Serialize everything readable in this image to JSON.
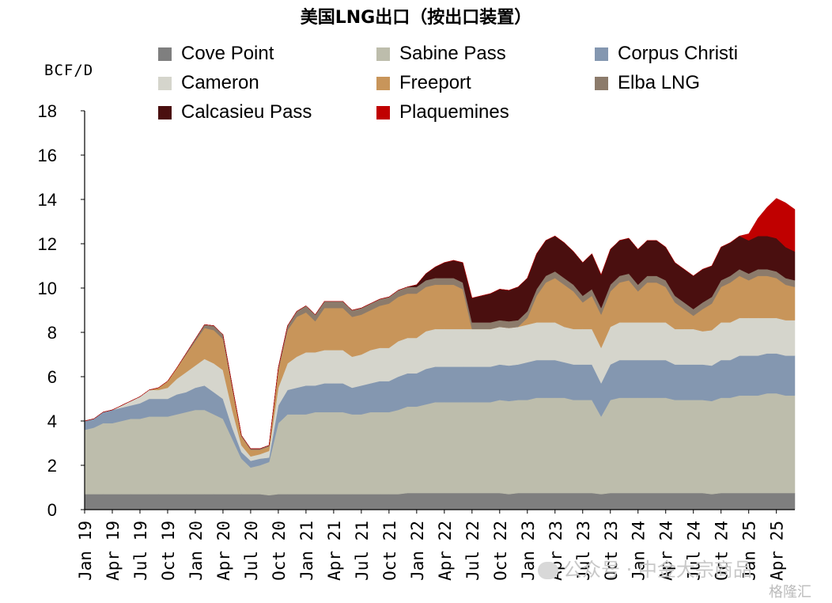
{
  "chart_data": {
    "type": "area",
    "stacked": true,
    "title": "美国LNG出口（按出口装置）",
    "ylabel": "BCF/D",
    "ylim": [
      0,
      18
    ],
    "yticks": [
      0,
      2,
      4,
      6,
      8,
      10,
      12,
      14,
      16,
      18
    ],
    "x_tick_labels": [
      "Jan 19",
      "Apr 19",
      "Jul 19",
      "Oct 19",
      "Jan 20",
      "Apr 20",
      "Jul 20",
      "Oct 20",
      "Jan 21",
      "Apr 21",
      "Jul 21",
      "Oct 21",
      "Jan 22",
      "Apr 22",
      "Jul 22",
      "Oct 22",
      "Jan 23",
      "Apr 23",
      "Jul 23",
      "Oct 23",
      "Jan 24",
      "Apr 24",
      "Jul 24",
      "Oct 24",
      "Jan 25",
      "Apr 25"
    ],
    "x_range": [
      "2019-01",
      "2025-06"
    ],
    "legend_position": "top",
    "x": [
      "2019-01",
      "2019-02",
      "2019-03",
      "2019-04",
      "2019-05",
      "2019-06",
      "2019-07",
      "2019-08",
      "2019-09",
      "2019-10",
      "2019-11",
      "2019-12",
      "2020-01",
      "2020-02",
      "2020-03",
      "2020-04",
      "2020-05",
      "2020-06",
      "2020-07",
      "2020-08",
      "2020-09",
      "2020-10",
      "2020-11",
      "2020-12",
      "2021-01",
      "2021-02",
      "2021-03",
      "2021-04",
      "2021-05",
      "2021-06",
      "2021-07",
      "2021-08",
      "2021-09",
      "2021-10",
      "2021-11",
      "2021-12",
      "2022-01",
      "2022-02",
      "2022-03",
      "2022-04",
      "2022-05",
      "2022-06",
      "2022-07",
      "2022-08",
      "2022-09",
      "2022-10",
      "2022-11",
      "2022-12",
      "2023-01",
      "2023-02",
      "2023-03",
      "2023-04",
      "2023-05",
      "2023-06",
      "2023-07",
      "2023-08",
      "2023-09",
      "2023-10",
      "2023-11",
      "2023-12",
      "2024-01",
      "2024-02",
      "2024-03",
      "2024-04",
      "2024-05",
      "2024-06",
      "2024-07",
      "2024-08",
      "2024-09",
      "2024-10",
      "2024-11",
      "2024-12",
      "2025-01",
      "2025-02",
      "2025-03",
      "2025-04",
      "2025-05",
      "2025-06"
    ],
    "series": [
      {
        "name": "Cove Point",
        "color": "#7f7f7f",
        "values": [
          0.7,
          0.7,
          0.7,
          0.7,
          0.7,
          0.7,
          0.7,
          0.7,
          0.7,
          0.7,
          0.7,
          0.7,
          0.7,
          0.7,
          0.7,
          0.7,
          0.7,
          0.7,
          0.7,
          0.7,
          0.65,
          0.7,
          0.7,
          0.7,
          0.7,
          0.7,
          0.7,
          0.7,
          0.7,
          0.7,
          0.7,
          0.7,
          0.7,
          0.7,
          0.7,
          0.75,
          0.75,
          0.75,
          0.75,
          0.75,
          0.75,
          0.75,
          0.75,
          0.75,
          0.75,
          0.75,
          0.7,
          0.75,
          0.75,
          0.75,
          0.75,
          0.75,
          0.75,
          0.75,
          0.75,
          0.75,
          0.7,
          0.75,
          0.75,
          0.75,
          0.75,
          0.75,
          0.75,
          0.75,
          0.75,
          0.75,
          0.75,
          0.75,
          0.7,
          0.75,
          0.75,
          0.75,
          0.75,
          0.75,
          0.75,
          0.75,
          0.75,
          0.75
        ]
      },
      {
        "name": "Sabine Pass",
        "color": "#bdbdac",
        "values": [
          2.9,
          3.0,
          3.2,
          3.2,
          3.3,
          3.4,
          3.4,
          3.5,
          3.5,
          3.5,
          3.6,
          3.7,
          3.8,
          3.8,
          3.6,
          3.4,
          2.5,
          1.6,
          1.2,
          1.3,
          1.5,
          3.2,
          3.6,
          3.6,
          3.6,
          3.7,
          3.7,
          3.7,
          3.7,
          3.6,
          3.6,
          3.7,
          3.7,
          3.7,
          3.8,
          3.9,
          3.9,
          4.0,
          4.1,
          4.1,
          4.1,
          4.1,
          4.1,
          4.1,
          4.1,
          4.2,
          4.2,
          4.2,
          4.2,
          4.3,
          4.3,
          4.3,
          4.3,
          4.2,
          4.2,
          4.2,
          3.5,
          4.2,
          4.3,
          4.3,
          4.3,
          4.3,
          4.3,
          4.3,
          4.2,
          4.2,
          4.2,
          4.2,
          4.2,
          4.3,
          4.3,
          4.4,
          4.4,
          4.4,
          4.5,
          4.5,
          4.4,
          4.4
        ]
      },
      {
        "name": "Corpus Christi",
        "color": "#8497b0",
        "values": [
          0.4,
          0.4,
          0.5,
          0.6,
          0.6,
          0.6,
          0.7,
          0.8,
          0.8,
          0.8,
          0.9,
          0.9,
          1.0,
          1.1,
          1.0,
          0.9,
          0.5,
          0.3,
          0.3,
          0.3,
          0.2,
          0.8,
          1.1,
          1.2,
          1.3,
          1.2,
          1.3,
          1.3,
          1.3,
          1.2,
          1.3,
          1.3,
          1.4,
          1.4,
          1.5,
          1.5,
          1.5,
          1.6,
          1.6,
          1.6,
          1.6,
          1.6,
          1.6,
          1.6,
          1.6,
          1.6,
          1.6,
          1.6,
          1.7,
          1.7,
          1.7,
          1.7,
          1.6,
          1.6,
          1.6,
          1.6,
          1.5,
          1.6,
          1.7,
          1.7,
          1.7,
          1.7,
          1.7,
          1.7,
          1.6,
          1.6,
          1.6,
          1.6,
          1.6,
          1.7,
          1.7,
          1.8,
          1.8,
          1.8,
          1.8,
          1.8,
          1.8,
          1.8
        ]
      },
      {
        "name": "Cameron",
        "color": "#d5d5cc",
        "values": [
          0.0,
          0.0,
          0.0,
          0.0,
          0.1,
          0.2,
          0.3,
          0.4,
          0.4,
          0.5,
          0.7,
          0.9,
          1.0,
          1.2,
          1.3,
          1.3,
          0.8,
          0.3,
          0.2,
          0.2,
          0.3,
          0.8,
          1.2,
          1.4,
          1.5,
          1.5,
          1.5,
          1.5,
          1.5,
          1.4,
          1.4,
          1.5,
          1.5,
          1.5,
          1.6,
          1.6,
          1.6,
          1.7,
          1.7,
          1.7,
          1.7,
          1.7,
          1.7,
          1.7,
          1.7,
          1.7,
          1.7,
          1.7,
          1.7,
          1.7,
          1.7,
          1.7,
          1.6,
          1.6,
          1.6,
          1.6,
          1.6,
          1.7,
          1.7,
          1.7,
          1.7,
          1.7,
          1.7,
          1.7,
          1.6,
          1.6,
          1.6,
          1.5,
          1.6,
          1.7,
          1.7,
          1.7,
          1.7,
          1.7,
          1.6,
          1.6,
          1.6,
          1.6
        ]
      },
      {
        "name": "Freeport",
        "color": "#c8955a",
        "values": [
          0.0,
          0.0,
          0.0,
          0.0,
          0.0,
          0.0,
          0.0,
          0.0,
          0.1,
          0.3,
          0.5,
          0.8,
          1.1,
          1.4,
          1.5,
          1.4,
          1.0,
          0.4,
          0.3,
          0.2,
          0.2,
          0.8,
          1.5,
          1.8,
          1.8,
          1.4,
          1.9,
          1.9,
          1.9,
          1.8,
          1.8,
          1.8,
          1.9,
          2.0,
          2.0,
          2.0,
          2.0,
          2.0,
          2.0,
          2.0,
          2.0,
          1.8,
          0.0,
          0.0,
          0.0,
          0.0,
          0.0,
          0.0,
          0.3,
          1.2,
          1.8,
          2.0,
          1.9,
          1.7,
          1.2,
          1.5,
          1.5,
          1.6,
          1.8,
          1.9,
          1.4,
          1.8,
          1.8,
          1.6,
          1.2,
          0.9,
          0.6,
          1.0,
          1.2,
          1.6,
          1.8,
          1.9,
          1.7,
          1.9,
          1.9,
          1.8,
          1.6,
          1.5
        ]
      },
      {
        "name": "Elba LNG",
        "color": "#8c7b6b",
        "values": [
          0.0,
          0.0,
          0.0,
          0.0,
          0.0,
          0.0,
          0.0,
          0.0,
          0.0,
          0.0,
          0.0,
          0.05,
          0.1,
          0.15,
          0.2,
          0.2,
          0.1,
          0.05,
          0.05,
          0.05,
          0.05,
          0.1,
          0.2,
          0.25,
          0.3,
          0.3,
          0.3,
          0.3,
          0.3,
          0.3,
          0.3,
          0.3,
          0.3,
          0.3,
          0.3,
          0.3,
          0.3,
          0.3,
          0.3,
          0.3,
          0.3,
          0.3,
          0.3,
          0.3,
          0.3,
          0.3,
          0.3,
          0.3,
          0.3,
          0.3,
          0.3,
          0.3,
          0.3,
          0.3,
          0.3,
          0.3,
          0.3,
          0.3,
          0.3,
          0.3,
          0.3,
          0.3,
          0.3,
          0.3,
          0.3,
          0.3,
          0.3,
          0.3,
          0.3,
          0.3,
          0.3,
          0.3,
          0.3,
          0.3,
          0.3,
          0.3,
          0.3,
          0.3
        ]
      },
      {
        "name": "Calcasieu Pass",
        "color": "#4a0f0f",
        "values": [
          0,
          0,
          0,
          0,
          0,
          0,
          0,
          0,
          0,
          0,
          0,
          0,
          0,
          0,
          0,
          0,
          0,
          0,
          0,
          0,
          0,
          0,
          0,
          0,
          0,
          0,
          0,
          0,
          0,
          0,
          0,
          0,
          0,
          0,
          0,
          0,
          0.1,
          0.3,
          0.5,
          0.7,
          0.8,
          0.9,
          1.1,
          1.2,
          1.3,
          1.4,
          1.4,
          1.5,
          1.5,
          1.6,
          1.6,
          1.6,
          1.6,
          1.5,
          1.5,
          1.6,
          1.5,
          1.6,
          1.6,
          1.6,
          1.6,
          1.6,
          1.6,
          1.5,
          1.5,
          1.5,
          1.5,
          1.5,
          1.4,
          1.5,
          1.5,
          1.5,
          1.5,
          1.5,
          1.5,
          1.5,
          1.4,
          1.3
        ]
      },
      {
        "name": "Plaquemines",
        "color": "#c00000",
        "values": [
          0,
          0,
          0,
          0,
          0,
          0,
          0,
          0,
          0,
          0,
          0,
          0,
          0,
          0,
          0,
          0,
          0,
          0,
          0,
          0,
          0,
          0,
          0,
          0,
          0,
          0,
          0,
          0,
          0,
          0,
          0,
          0,
          0,
          0,
          0,
          0,
          0,
          0,
          0,
          0,
          0,
          0,
          0,
          0,
          0,
          0,
          0,
          0,
          0,
          0,
          0,
          0,
          0,
          0,
          0,
          0,
          0,
          0,
          0,
          0,
          0,
          0,
          0,
          0,
          0,
          0,
          0,
          0,
          0,
          0,
          0,
          0,
          0.3,
          0.8,
          1.3,
          1.8,
          2.0,
          1.9
        ]
      }
    ]
  },
  "watermark": {
    "text": "公众号 · 中金大宗商品",
    "corner_text": "格隆汇"
  }
}
